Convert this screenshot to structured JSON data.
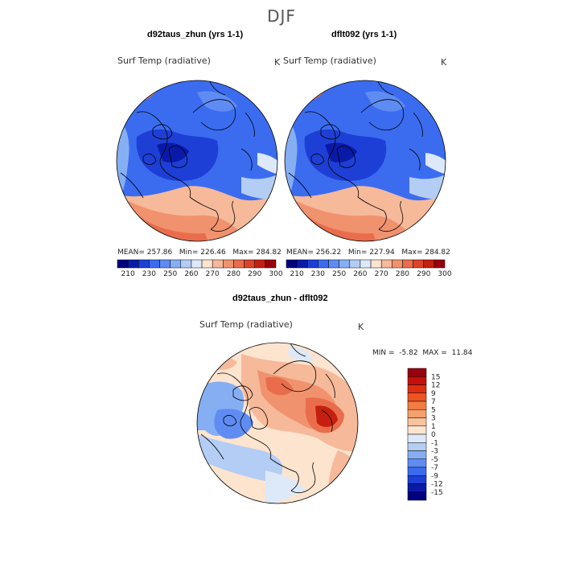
{
  "figure": {
    "title": "DJF"
  },
  "panels": [
    {
      "title": "d92taus_zhun (yrs 1-1)",
      "variable": "Surf Temp (radiative)",
      "units": "K",
      "stats": {
        "mean": "257.86",
        "min": "226.46",
        "max": "284.82"
      }
    },
    {
      "title": "dflt092 (yrs 1-1)",
      "variable": "Surf Temp (radiative)",
      "units": "K",
      "stats": {
        "mean": "256.22",
        "min": "227.94",
        "max": "284.82"
      }
    },
    {
      "title": "d92taus_zhun - dflt092",
      "variable": "Surf Temp (radiative)",
      "units": "K",
      "stats": {
        "min": "-5.82",
        "max": "11.84"
      }
    }
  ],
  "stats_labels": {
    "mean": "MEAN=",
    "min": "Min=",
    "max": "Max=",
    "min_caps": "MIN =",
    "max_caps": "MAX ="
  },
  "colorbar_abs": {
    "ticks": [
      "210",
      "230",
      "250",
      "260",
      "270",
      "280",
      "290",
      "300"
    ],
    "colors": [
      "#00007f",
      "#0a1aa8",
      "#1e3fd6",
      "#3b6cf0",
      "#5f8cf2",
      "#86aef3",
      "#b3cdf5",
      "#dde9f8",
      "#fde4cf",
      "#f6b99a",
      "#f1926f",
      "#e96d4c",
      "#dc4328",
      "#c5200f",
      "#99000d"
    ]
  },
  "colorbar_diff": {
    "ticks": [
      "15",
      "12",
      "9",
      "7",
      "5",
      "3",
      "1",
      "0",
      "-1",
      "-3",
      "-5",
      "-7",
      "-9",
      "-12",
      "-15"
    ],
    "colors": [
      "#99000d",
      "#c3100a",
      "#dc2f12",
      "#ec5523",
      "#f37b44",
      "#f6a06d",
      "#f9c39c",
      "#fde4cf",
      "#dde9f8",
      "#b3cdf5",
      "#86aef3",
      "#5f8cf2",
      "#3b6cf0",
      "#1e3fd6",
      "#0a1aa8",
      "#00007f"
    ]
  }
}
